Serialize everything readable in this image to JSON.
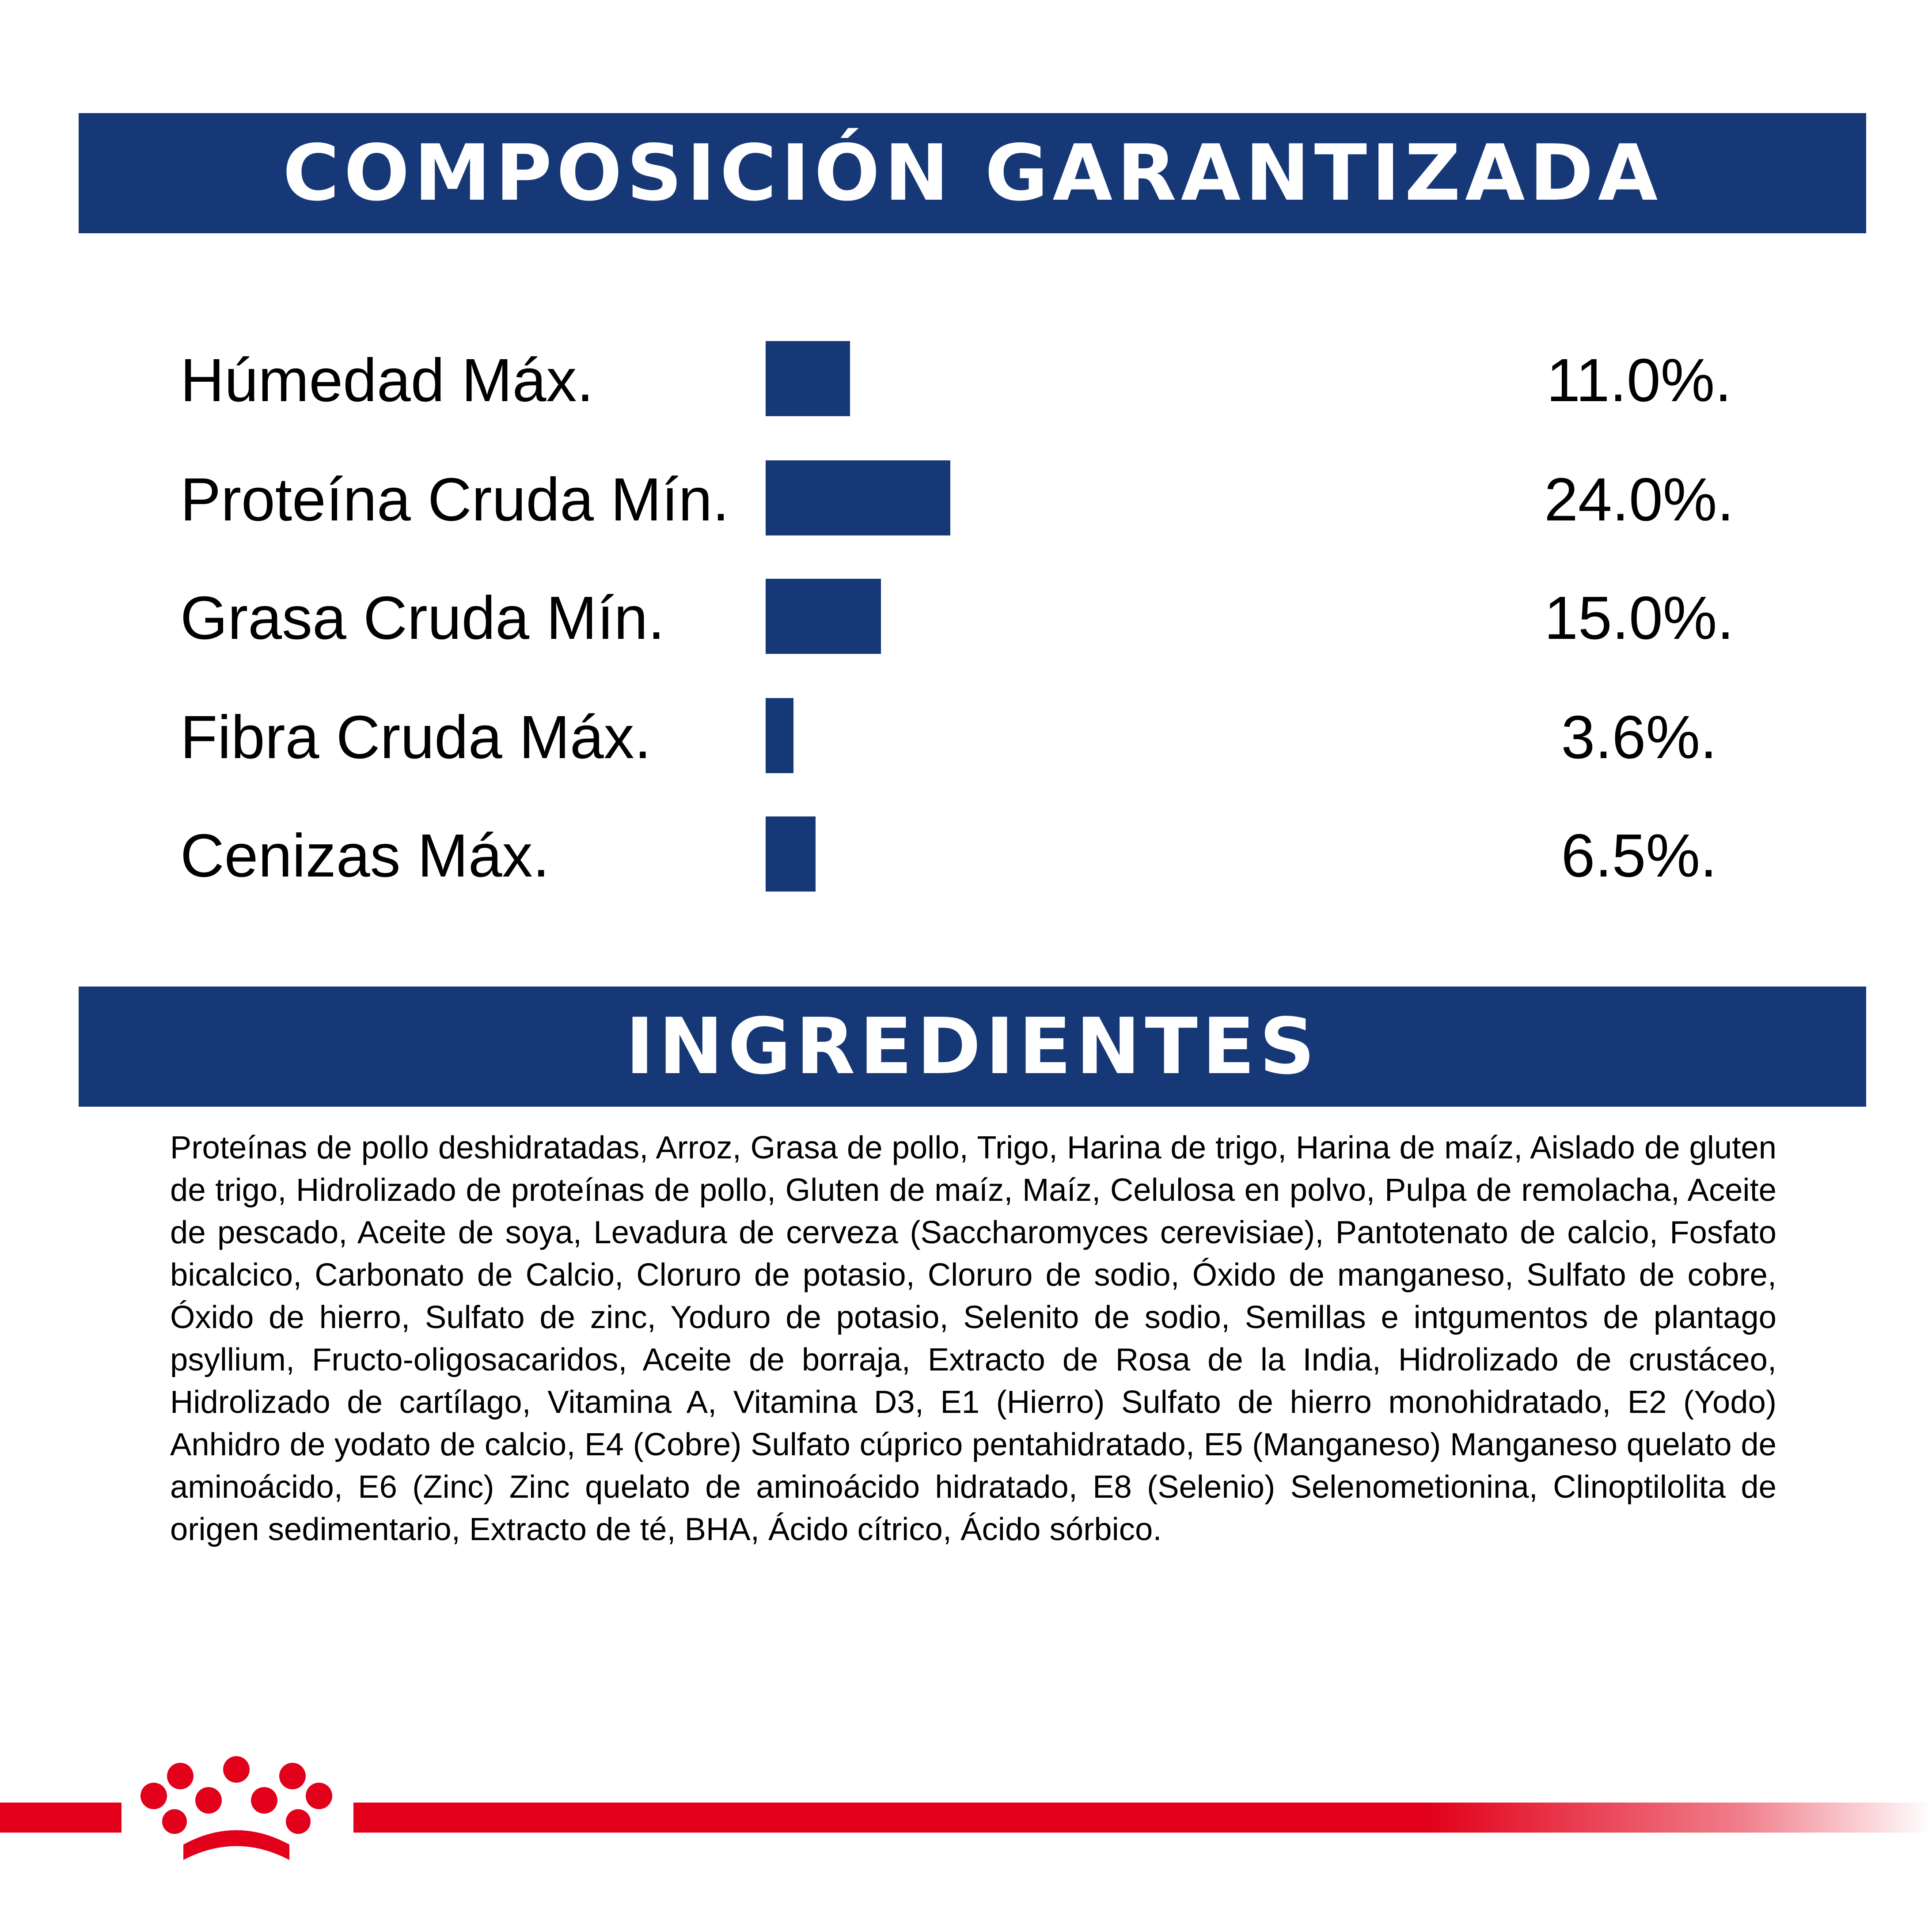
{
  "composition": {
    "title": "COMPOSICIÓN GARANTIZADA",
    "rows": [
      {
        "label": "Húmedad Máx.",
        "value": "11.0%.",
        "amount": 11.0
      },
      {
        "label": "Proteína Cruda Mín.",
        "value": "24.0%.",
        "amount": 24.0
      },
      {
        "label": "Grasa Cruda Mín.",
        "value": "15.0%.",
        "amount": 15.0
      },
      {
        "label": "Fibra Cruda Máx.",
        "value": "3.6%.",
        "amount": 3.6
      },
      {
        "label": "Cenizas Máx.",
        "value": "6.5%.",
        "amount": 6.5
      }
    ]
  },
  "ingredients": {
    "title": "INGREDIENTES",
    "text": "Proteínas de pollo deshidratadas, Arroz, Grasa de pollo, Trigo, Harina de trigo, Harina de maíz, Aislado de gluten de trigo, Hidrolizado de proteínas de pollo, Gluten de maíz, Maíz, Celulosa en polvo, Pulpa de remolacha, Aceite de pescado, Aceite de soya, Levadura de cerveza (Saccharomyces cerevisiae), Pantotenato de calcio, Fosfato bicalcico, Carbonato de Calcio, Cloruro de potasio, Cloruro de sodio, Óxido de manganeso, Sulfato de cobre, Óxido de hierro, Sulfato de zinc, Yoduro de potasio, Selenito de sodio, Semillas e intgumentos de plantago psyllium, Fructo-oligosacaridos, Aceite de borraja, Extracto de Rosa de la India, Hidrolizado de crustáceo, Hidrolizado de cartílago, Vitamina A, Vitamina D3, E1 (Hierro) Sulfato de hierro monohidratado, E2 (Yodo) Anhidro de yodato de calcio, E4 (Cobre) Sulfato cúprico pentahidratado, E5 (Manganeso) Manganeso quelato de aminoácido, E6 (Zinc) Zinc quelato de aminoácido hidratado, E8 (Selenio) Selenometionina, Clinoptilolita de origen sedimentario, Extracto de té, BHA, Ácido cítrico, Ácido sórbico."
  },
  "colors": {
    "banner": "#163877",
    "bar": "#163877",
    "brand_red": "#e2001a"
  },
  "logo": {
    "icon": "crown-logo-icon"
  }
}
